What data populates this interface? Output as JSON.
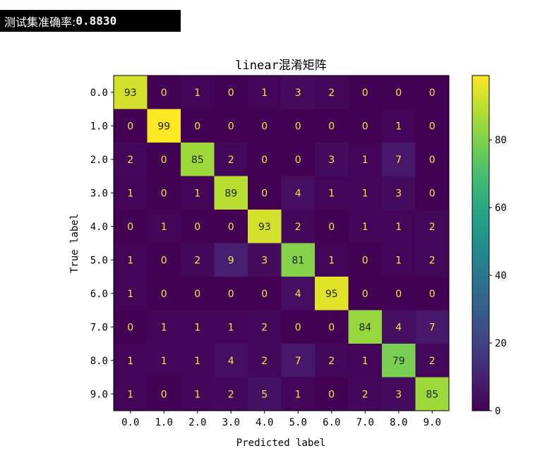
{
  "output": {
    "label": "测试集准确率:",
    "value": "0.8830"
  },
  "chart_data": {
    "type": "heatmap",
    "title": "linear混淆矩阵",
    "xlabel": "Predicted label",
    "ylabel": "True label",
    "x_categories": [
      "0.0",
      "1.0",
      "2.0",
      "3.0",
      "4.0",
      "5.0",
      "6.0",
      "7.0",
      "8.0",
      "9.0"
    ],
    "y_categories": [
      "0.0",
      "1.0",
      "2.0",
      "3.0",
      "4.0",
      "5.0",
      "6.0",
      "7.0",
      "8.0",
      "9.0"
    ],
    "values": [
      [
        93,
        0,
        1,
        0,
        1,
        3,
        2,
        0,
        0,
        0
      ],
      [
        0,
        99,
        0,
        0,
        0,
        0,
        0,
        0,
        1,
        0
      ],
      [
        2,
        0,
        85,
        2,
        0,
        0,
        3,
        1,
        7,
        0
      ],
      [
        1,
        0,
        1,
        89,
        0,
        4,
        1,
        1,
        3,
        0
      ],
      [
        0,
        1,
        0,
        0,
        93,
        2,
        0,
        1,
        1,
        2
      ],
      [
        1,
        0,
        2,
        9,
        3,
        81,
        1,
        0,
        1,
        2
      ],
      [
        1,
        0,
        0,
        0,
        0,
        4,
        95,
        0,
        0,
        0
      ],
      [
        0,
        1,
        1,
        1,
        2,
        0,
        0,
        84,
        4,
        7
      ],
      [
        1,
        1,
        1,
        4,
        2,
        7,
        2,
        1,
        79,
        2
      ],
      [
        1,
        0,
        1,
        2,
        5,
        1,
        0,
        2,
        3,
        85
      ]
    ],
    "colormap": "viridis",
    "colorbar": {
      "min": 0,
      "max": 99,
      "ticks": [
        0,
        20,
        40,
        60,
        80
      ]
    }
  }
}
